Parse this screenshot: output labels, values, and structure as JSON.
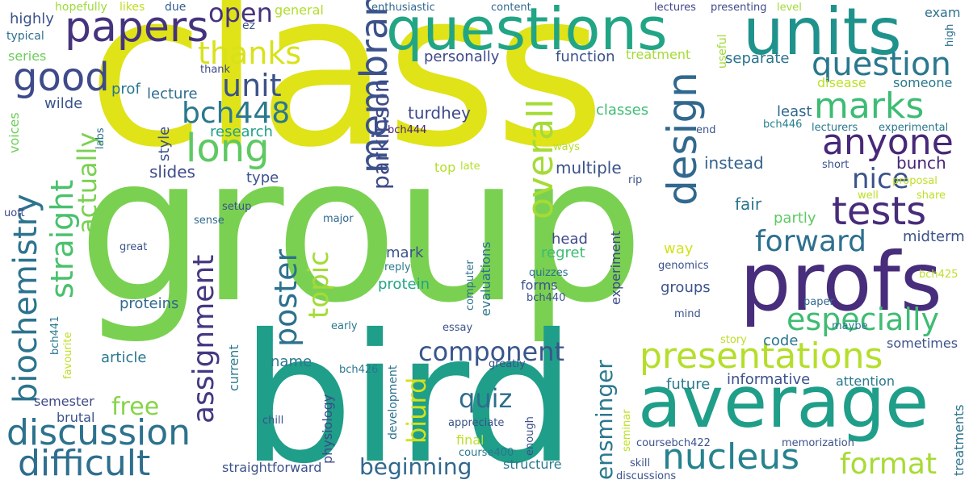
{
  "background": "#ffffff",
  "palette": [
    "#dfe318",
    "#7ad151",
    "#1f9e89",
    "#21908d",
    "#2a788e",
    "#31688e",
    "#3b528b",
    "#472d7b",
    "#440154",
    "#35b779",
    "#bddf26",
    "#a2da37"
  ],
  "words": [
    {
      "text": "class",
      "color": "#dfe318"
    },
    {
      "text": "group",
      "color": "#7ad151"
    },
    {
      "text": "bird",
      "color": "#1f9e89"
    },
    {
      "text": "questions",
      "color": "#21a585"
    },
    {
      "text": "units",
      "color": "#20928c"
    },
    {
      "text": "profs",
      "color": "#472d7b"
    },
    {
      "text": "average",
      "color": "#1f9e89"
    },
    {
      "text": "papers",
      "color": "#46337e"
    },
    {
      "text": "good",
      "color": "#3e4a89"
    },
    {
      "text": "long",
      "color": "#5ec962"
    },
    {
      "text": "membrane",
      "color": "#3b528b"
    },
    {
      "text": "design",
      "color": "#31688e"
    },
    {
      "text": "question",
      "color": "#2a788e"
    },
    {
      "text": "marks",
      "color": "#3dbc74"
    },
    {
      "text": "anyone",
      "color": "#482878"
    },
    {
      "text": "tests",
      "color": "#472c7a"
    },
    {
      "text": "presentations",
      "color": "#b5de2b"
    },
    {
      "text": "discussion",
      "color": "#2c728e"
    },
    {
      "text": "difficult",
      "color": "#2e6e8e"
    },
    {
      "text": "biochemistry",
      "color": "#2c738e"
    },
    {
      "text": "straight",
      "color": "#4ac16d"
    },
    {
      "text": "thanks",
      "color": "#d8e219"
    },
    {
      "text": "bch448",
      "color": "#2a788e"
    },
    {
      "text": "unit",
      "color": "#3b528b"
    },
    {
      "text": "open",
      "color": "#46327e"
    },
    {
      "text": "overall",
      "color": "#a5db36"
    },
    {
      "text": "forward",
      "color": "#2d708e"
    },
    {
      "text": "especially",
      "color": "#3fbc73"
    },
    {
      "text": "nucleus",
      "color": "#26828e"
    },
    {
      "text": "format",
      "color": "#a8db34"
    },
    {
      "text": "component",
      "color": "#39568c"
    },
    {
      "text": "assignment",
      "color": "#453882"
    },
    {
      "text": "poster",
      "color": "#2c718e"
    },
    {
      "text": "topic",
      "color": "#a5db36"
    },
    {
      "text": "nice",
      "color": "#3b528b"
    },
    {
      "text": "parkinson",
      "color": "#3e4a89"
    },
    {
      "text": "actually",
      "color": "#7ad151"
    },
    {
      "text": "biurd",
      "color": "#d2e21b"
    },
    {
      "text": "quiz",
      "color": "#2e6d8e"
    },
    {
      "text": "beginning",
      "color": "#31688e"
    },
    {
      "text": "ensminger",
      "color": "#2a788e"
    },
    {
      "text": "free",
      "color": "#86d549"
    },
    {
      "text": "research",
      "color": "#1fa088"
    },
    {
      "text": "turdhey",
      "color": "#3e4989"
    },
    {
      "text": "multiple",
      "color": "#3b528b"
    },
    {
      "text": "classes",
      "color": "#3dbc74"
    },
    {
      "text": "instead",
      "color": "#33638d"
    },
    {
      "text": "bunch",
      "color": "#482475"
    },
    {
      "text": "fair",
      "color": "#2b758e"
    },
    {
      "text": "style",
      "color": "#3b528b"
    },
    {
      "text": "slides",
      "color": "#3e4c8a"
    },
    {
      "text": "type",
      "color": "#3b528b"
    },
    {
      "text": "lecture",
      "color": "#2f6b8e"
    },
    {
      "text": "wilde",
      "color": "#3a548c"
    },
    {
      "text": "prof",
      "color": "#2a768e"
    },
    {
      "text": "highly",
      "color": "#3b528b"
    },
    {
      "text": "typical",
      "color": "#2e6f8e"
    },
    {
      "text": "series",
      "color": "#6ccd5a"
    },
    {
      "text": "likes",
      "color": "#bddf26"
    },
    {
      "text": "due",
      "color": "#35608d"
    },
    {
      "text": "hopefully",
      "color": "#9fda3a"
    },
    {
      "text": "voices",
      "color": "#6ece58"
    },
    {
      "text": "labs",
      "color": "#2e6e8e"
    },
    {
      "text": "thank",
      "color": "#3e4989"
    },
    {
      "text": "general",
      "color": "#b2dd2d"
    },
    {
      "text": "ez",
      "color": "#3b528b"
    },
    {
      "text": "enthusiastic",
      "color": "#31688e"
    },
    {
      "text": "content",
      "color": "#31688e"
    },
    {
      "text": "lectures",
      "color": "#404588"
    },
    {
      "text": "presenting",
      "color": "#3e4a89"
    },
    {
      "text": "level",
      "color": "#a2da37"
    },
    {
      "text": "exam",
      "color": "#2d708e"
    },
    {
      "text": "high",
      "color": "#2d708e"
    },
    {
      "text": "personally",
      "color": "#3e4989"
    },
    {
      "text": "function",
      "color": "#3b528b"
    },
    {
      "text": "treatment",
      "color": "#a5db36"
    },
    {
      "text": "useful",
      "color": "#a2da37"
    },
    {
      "text": "separate",
      "color": "#2c738e"
    },
    {
      "text": "disease",
      "color": "#bddf26"
    },
    {
      "text": "someone",
      "color": "#2a788e"
    },
    {
      "text": "least",
      "color": "#31688e"
    },
    {
      "text": "bch446",
      "color": "#27808e"
    },
    {
      "text": "lecturers",
      "color": "#2a788e"
    },
    {
      "text": "experimental",
      "color": "#2a788e"
    },
    {
      "text": "end",
      "color": "#3b528b"
    },
    {
      "text": "bch444",
      "color": "#482071"
    },
    {
      "text": "ways",
      "color": "#b5de2b"
    },
    {
      "text": "top",
      "color": "#b5de2b"
    },
    {
      "text": "late",
      "color": "#b5de2b"
    },
    {
      "text": "rip",
      "color": "#3b528b"
    },
    {
      "text": "short",
      "color": "#3a548c"
    },
    {
      "text": "proposal",
      "color": "#bddf26"
    },
    {
      "text": "well",
      "color": "#bddf26"
    },
    {
      "text": "share",
      "color": "#bddf26"
    },
    {
      "text": "uoft",
      "color": "#3e4989"
    },
    {
      "text": "sense",
      "color": "#31688e"
    },
    {
      "text": "setup",
      "color": "#3b528b"
    },
    {
      "text": "major",
      "color": "#31688e"
    },
    {
      "text": "partly",
      "color": "#5ec962"
    },
    {
      "text": "way",
      "color": "#d2e21b"
    },
    {
      "text": "midterm",
      "color": "#3b528b"
    },
    {
      "text": "great",
      "color": "#3b528b"
    },
    {
      "text": "mark",
      "color": "#3b528b"
    },
    {
      "text": "head",
      "color": "#3e4989"
    },
    {
      "text": "experiment",
      "color": "#3e4989"
    },
    {
      "text": "regret",
      "color": "#3dbc74"
    },
    {
      "text": "evaluations",
      "color": "#2c738e"
    },
    {
      "text": "reply",
      "color": "#2a788e"
    },
    {
      "text": "protein",
      "color": "#21a585"
    },
    {
      "text": "forms",
      "color": "#3b528b"
    },
    {
      "text": "quizzes",
      "color": "#2c738e"
    },
    {
      "text": "groups",
      "color": "#3b528b"
    },
    {
      "text": "genomics",
      "color": "#3b528b"
    },
    {
      "text": "bch425",
      "color": "#bddf26"
    },
    {
      "text": "computer",
      "color": "#2c738e"
    },
    {
      "text": "proteins",
      "color": "#31688e"
    },
    {
      "text": "bch440",
      "color": "#3b528b"
    },
    {
      "text": "mind",
      "color": "#3b528b"
    },
    {
      "text": "paper",
      "color": "#31688e"
    },
    {
      "text": "bch441",
      "color": "#2a788e"
    },
    {
      "text": "favourite",
      "color": "#bddf26"
    },
    {
      "text": "early",
      "color": "#2a788e"
    },
    {
      "text": "essay",
      "color": "#3b528b"
    },
    {
      "text": "story",
      "color": "#bddf26"
    },
    {
      "text": "maybe",
      "color": "#2a788e"
    },
    {
      "text": "article",
      "color": "#2a788e"
    },
    {
      "text": "code",
      "color": "#2a788e"
    },
    {
      "text": "sometimes",
      "color": "#3b528b"
    },
    {
      "text": "name",
      "color": "#2a788e"
    },
    {
      "text": "current",
      "color": "#2a788e"
    },
    {
      "text": "bch426",
      "color": "#2a788e"
    },
    {
      "text": "development",
      "color": "#2c738e"
    },
    {
      "text": "greatly",
      "color": "#3b528b"
    },
    {
      "text": "future",
      "color": "#2a788e"
    },
    {
      "text": "informative",
      "color": "#3b528b"
    },
    {
      "text": "attention",
      "color": "#2a788e"
    },
    {
      "text": "semester",
      "color": "#3e4989"
    },
    {
      "text": "brutal",
      "color": "#3b528b"
    },
    {
      "text": "treatments",
      "color": "#2c738e"
    },
    {
      "text": "physiology",
      "color": "#3e4989"
    },
    {
      "text": "chill",
      "color": "#3b528b"
    },
    {
      "text": "appreciate",
      "color": "#3b528b"
    },
    {
      "text": "final",
      "color": "#bddf26"
    },
    {
      "text": "enough",
      "color": "#3b528b"
    },
    {
      "text": "seminar",
      "color": "#bddf26"
    },
    {
      "text": "coursebch422",
      "color": "#3b528b"
    },
    {
      "text": "memorization",
      "color": "#3b528b"
    },
    {
      "text": "course400",
      "color": "#2a788e"
    },
    {
      "text": "straightforward",
      "color": "#3b528b"
    },
    {
      "text": "structure",
      "color": "#2a788e"
    },
    {
      "text": "skill",
      "color": "#3b528b"
    },
    {
      "text": "discussions",
      "color": "#3b528b"
    }
  ]
}
